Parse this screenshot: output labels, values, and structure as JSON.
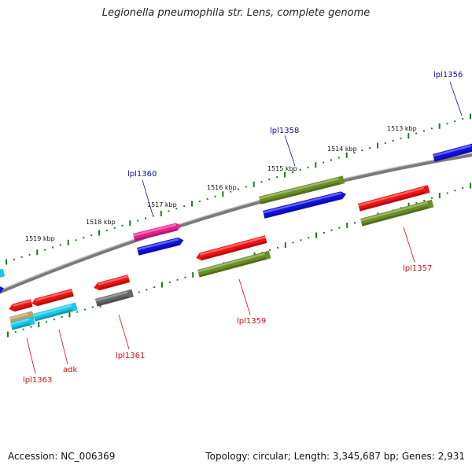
{
  "title": "Legionella pneumophila str. Lens, complete genome",
  "footer": {
    "accession": "Accession: NC_006369",
    "topology": "Topology: circular; Length: 3,345,687 bp; Genes: 2,931"
  },
  "ruler_labels": [
    "1519 kbp",
    "1518 kbp",
    "1517 kbp",
    "1516 kbp",
    "1515 kbp",
    "1514 kbp",
    "1513 kbp"
  ],
  "gene_labels": [
    "lpl1356",
    "lpl1358",
    "lpl1360",
    "lpl1357",
    "lpl1359",
    "lpl1361",
    "lpl1363",
    "adk"
  ],
  "colors": {
    "backbone": "#8c8c8c",
    "ruler_ticks": "#1f7a1f",
    "label_top": "#1010a0",
    "label_bottom": "#cc1010",
    "red": "#ee1111",
    "blue": "#1111dd",
    "olive": "#6b8e23",
    "magenta": "#e62290",
    "cyan": "#19c8e6",
    "gray": "#666666",
    "tan": "#b8a068"
  }
}
